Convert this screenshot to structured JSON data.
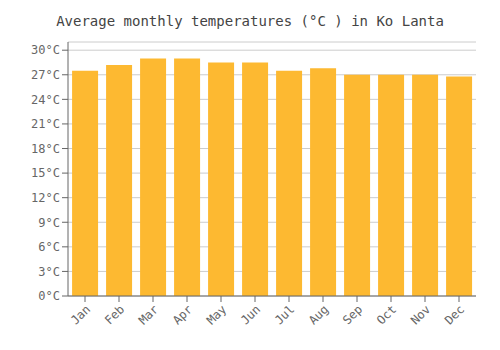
{
  "chart_data": {
    "type": "bar",
    "title": "Average monthly temperatures (°C ) in Ko Lanta",
    "categories": [
      "Jan",
      "Feb",
      "Mar",
      "Apr",
      "May",
      "Jun",
      "Jul",
      "Aug",
      "Sep",
      "Oct",
      "Nov",
      "Dec"
    ],
    "values": [
      27.5,
      28.2,
      29.0,
      29.0,
      28.5,
      28.5,
      27.5,
      27.8,
      27.0,
      27.0,
      27.0,
      26.8
    ],
    "color": "#FDB931",
    "ylim": [
      0,
      31
    ],
    "yticks": [
      {
        "value": 0,
        "label": "0°C"
      },
      {
        "value": 3,
        "label": "3°C"
      },
      {
        "value": 6,
        "label": "6°C"
      },
      {
        "value": 9,
        "label": "9°C"
      },
      {
        "value": 12,
        "label": "12°C"
      },
      {
        "value": 15,
        "label": "15°C"
      },
      {
        "value": 18,
        "label": "18°C"
      },
      {
        "value": 21,
        "label": "21°C"
      },
      {
        "value": 24,
        "label": "24°C"
      },
      {
        "value": 27,
        "label": "27°C"
      },
      {
        "value": 30,
        "label": "30°C"
      }
    ],
    "grid": true
  }
}
